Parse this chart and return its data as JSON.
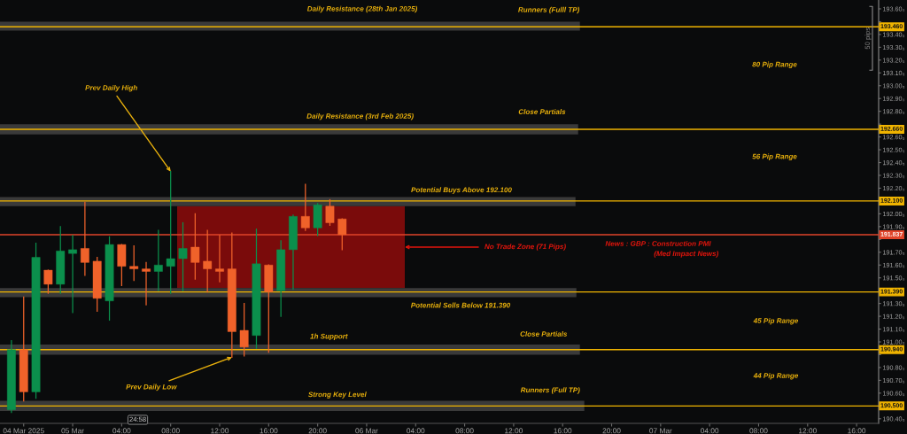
{
  "chart_data": {
    "type": "candlestick",
    "x": [
      "2025-03-04T19:00",
      "2025-03-04T20:00",
      "2025-03-04T21:00",
      "2025-03-04T22:00",
      "2025-03-04T23:00",
      "2025-03-05T00:00",
      "2025-03-05T01:00",
      "2025-03-05T02:00",
      "2025-03-05T03:00",
      "2025-03-05T04:00",
      "2025-03-05T05:00",
      "2025-03-05T06:00",
      "2025-03-05T07:00",
      "2025-03-05T08:00",
      "2025-03-05T09:00",
      "2025-03-05T10:00",
      "2025-03-05T11:00",
      "2025-03-05T12:00",
      "2025-03-05T13:00",
      "2025-03-05T14:00",
      "2025-03-05T15:00",
      "2025-03-05T16:00",
      "2025-03-05T17:00",
      "2025-03-05T18:00",
      "2025-03-05T19:00",
      "2025-03-05T20:00",
      "2025-03-05T21:00",
      "2025-03-05T22:00"
    ],
    "ohlc": [
      [
        190.47,
        191.01,
        190.45,
        190.94
      ],
      [
        190.94,
        191.35,
        190.54,
        190.61
      ],
      [
        190.61,
        191.77,
        190.56,
        191.66
      ],
      [
        191.56,
        191.56,
        191.38,
        191.45
      ],
      [
        191.45,
        191.9,
        191.38,
        191.71
      ],
      [
        191.69,
        191.83,
        191.23,
        191.72
      ],
      [
        191.73,
        192.09,
        191.52,
        191.62
      ],
      [
        191.63,
        191.66,
        191.24,
        191.34
      ],
      [
        191.32,
        191.82,
        191.17,
        191.76
      ],
      [
        191.76,
        191.76,
        191.44,
        191.59
      ],
      [
        191.59,
        191.75,
        191.48,
        191.57
      ],
      [
        191.57,
        191.62,
        191.29,
        191.55
      ],
      [
        191.55,
        191.87,
        191.4,
        191.6
      ],
      [
        191.59,
        192.33,
        191.38,
        191.65
      ],
      [
        191.65,
        191.93,
        191.4,
        191.73
      ],
      [
        191.74,
        192.0,
        191.49,
        191.62
      ],
      [
        191.63,
        191.87,
        191.39,
        191.57
      ],
      [
        191.57,
        191.83,
        191.47,
        191.55
      ],
      [
        191.57,
        191.85,
        190.88,
        191.08
      ],
      [
        191.09,
        191.3,
        190.89,
        190.96
      ],
      [
        191.05,
        191.88,
        190.95,
        191.61
      ],
      [
        191.6,
        191.6,
        190.92,
        191.39
      ],
      [
        191.4,
        191.79,
        191.2,
        191.72
      ],
      [
        191.72,
        191.99,
        191.41,
        191.98
      ],
      [
        191.98,
        192.23,
        191.87,
        191.89
      ],
      [
        191.89,
        192.08,
        191.83,
        192.07
      ],
      [
        192.06,
        192.11,
        191.91,
        191.93
      ],
      [
        191.96,
        191.96,
        191.72,
        191.837
      ]
    ],
    "colors": [
      "#0b8f4c",
      "#f0622a",
      "#0b8f4c",
      "#f0622a",
      "#0b8f4c",
      "#0b8f4c",
      "#f0622a",
      "#f0622a",
      "#0b8f4c",
      "#f0622a",
      "#f0622a",
      "#f0622a",
      "#0b8f4c",
      "#0b8f4c",
      "#0b8f4c",
      "#f0622a",
      "#f0622a",
      "#f0622a",
      "#f0622a",
      "#f0622a",
      "#0b8f4c",
      "#f0622a",
      "#0b8f4c",
      "#0b8f4c",
      "#f0622a",
      "#0b8f4c",
      "#f0622a",
      "#f0622a"
    ],
    "xlim": [
      "2025-03-04T18:04",
      "2025-03-07T17:48"
    ],
    "ylim": [
      190.364,
      193.669
    ],
    "xticks": [
      {
        "value": "2025-03-04T20:00",
        "label": "04 Mar 2025"
      },
      {
        "value": "2025-03-05T00:00",
        "label": "05 Mar"
      },
      {
        "value": "2025-03-05T04:00",
        "label": "04:00"
      },
      {
        "value": "2025-03-05T08:00",
        "label": "08:00"
      },
      {
        "value": "2025-03-05T12:00",
        "label": "12:00"
      },
      {
        "value": "2025-03-05T16:00",
        "label": "16:00"
      },
      {
        "value": "2025-03-05T20:00",
        "label": "20:00"
      },
      {
        "value": "2025-03-06T00:00",
        "label": "06 Mar"
      },
      {
        "value": "2025-03-06T04:00",
        "label": "04:00"
      },
      {
        "value": "2025-03-06T08:00",
        "label": "08:00"
      },
      {
        "value": "2025-03-06T12:00",
        "label": "12:00"
      },
      {
        "value": "2025-03-06T16:00",
        "label": "16:00"
      },
      {
        "value": "2025-03-06T20:00",
        "label": "20:00"
      },
      {
        "value": "2025-03-07T00:00",
        "label": "07 Mar"
      },
      {
        "value": "2025-03-07T04:00",
        "label": "04:00"
      },
      {
        "value": "2025-03-07T08:00",
        "label": "08:00"
      },
      {
        "value": "2025-03-07T12:00",
        "label": "12:00"
      },
      {
        "value": "2025-03-07T16:00",
        "label": "16:00"
      }
    ],
    "yticks": [
      {
        "value": 190.4,
        "label": "190.40₀"
      },
      {
        "value": 190.5,
        "label": null
      },
      {
        "value": 190.6,
        "label": "190.60₀"
      },
      {
        "value": 190.7,
        "label": "190.70₀"
      },
      {
        "value": 190.8,
        "label": "190.80₀"
      },
      {
        "value": 190.9,
        "label": null
      },
      {
        "value": 191.0,
        "label": "191.00₀"
      },
      {
        "value": 191.1,
        "label": "191.10₀"
      },
      {
        "value": 191.2,
        "label": "191.20₀"
      },
      {
        "value": 191.3,
        "label": "191.30₀"
      },
      {
        "value": 191.4,
        "label": null
      },
      {
        "value": 191.5,
        "label": "191.50₀"
      },
      {
        "value": 191.6,
        "label": "191.60₀"
      },
      {
        "value": 191.7,
        "label": "191.70₀"
      },
      {
        "value": 191.8,
        "label": null
      },
      {
        "value": 191.9,
        "label": "191.90₀"
      },
      {
        "value": 192.0,
        "label": "192.00₀"
      },
      {
        "value": 192.1,
        "label": null
      },
      {
        "value": 192.2,
        "label": "192.20₀"
      },
      {
        "value": 192.3,
        "label": "192.30₀"
      },
      {
        "value": 192.4,
        "label": "192.40₀"
      },
      {
        "value": 192.5,
        "label": "192.50₀"
      },
      {
        "value": 192.6,
        "label": "192.60₀"
      },
      {
        "value": 192.7,
        "label": null
      },
      {
        "value": 192.8,
        "label": "192.80₀"
      },
      {
        "value": 192.9,
        "label": "192.90₀"
      },
      {
        "value": 193.0,
        "label": "193.00₀"
      },
      {
        "value": 193.1,
        "label": "193.10₀"
      },
      {
        "value": 193.2,
        "label": "193.20₀"
      },
      {
        "value": 193.3,
        "label": "193.30₀"
      },
      {
        "value": 193.4,
        "label": "193.40₀"
      },
      {
        "value": 193.5,
        "label": null
      },
      {
        "value": 193.6,
        "label": "193.60₀"
      }
    ],
    "bands": [
      {
        "axis": "y",
        "from": 191.42,
        "to": 192.06,
        "color": "#7a0b0b",
        "label": "No Trade Zone (71 Pips)"
      },
      {
        "axis": "y",
        "from": 193.43,
        "to": 193.5,
        "color": "#3a3a3a"
      },
      {
        "axis": "y",
        "from": 192.62,
        "to": 192.7,
        "color": "#3a3a3a"
      },
      {
        "axis": "y",
        "from": 192.06,
        "to": 192.13,
        "color": "#3a3a3a"
      },
      {
        "axis": "y",
        "from": 191.35,
        "to": 191.42,
        "color": "#3a3a3a"
      },
      {
        "axis": "y",
        "from": 190.9,
        "to": 190.98,
        "color": "#3a3a3a"
      },
      {
        "axis": "y",
        "from": 190.46,
        "to": 190.54,
        "color": "#3a3a3a"
      }
    ],
    "ref_lines": [
      {
        "axis": "y",
        "value": 193.46,
        "label": "193.460",
        "color": "#f0b400"
      },
      {
        "axis": "y",
        "value": 192.66,
        "label": "192.660",
        "color": "#f0b400"
      },
      {
        "axis": "y",
        "value": 192.1,
        "label": "192.100",
        "color": "#f0b400"
      },
      {
        "axis": "y",
        "value": 191.837,
        "label": "191.837",
        "color": "#e0452a"
      },
      {
        "axis": "y",
        "value": 191.39,
        "label": "191.390",
        "color": "#f0b400"
      },
      {
        "axis": "y",
        "value": 190.94,
        "label": "190.940",
        "color": "#f0b400"
      },
      {
        "axis": "y",
        "value": 190.5,
        "label": "190.500",
        "color": "#f0b400"
      }
    ],
    "annotations": [
      "Daily Resistance (28th Jan 2025)",
      "Runners (Fulll TP)",
      "80 Pip Range",
      {
        "text": "Prev Daily High",
        "x": "2025-03-05T08:00",
        "y": 192.33
      },
      "Daily Resistance (3rd Feb 2025)",
      "Close Partials",
      "56 Pip Range",
      "Potential Buys Above 192.100",
      "News : GBP : Construction PMI",
      "(Med Impact News)",
      "Potential Sells Below 191.390",
      "45 Pip Range",
      "1h Support",
      "Close Partials",
      "44 Pip Range",
      {
        "text": "Prev Daily Low",
        "x": "2025-03-05T13:00",
        "y": 190.88
      },
      "Strong Key Level",
      "Runners (Full TP)",
      "50 pips",
      "24:58"
    ]
  }
}
